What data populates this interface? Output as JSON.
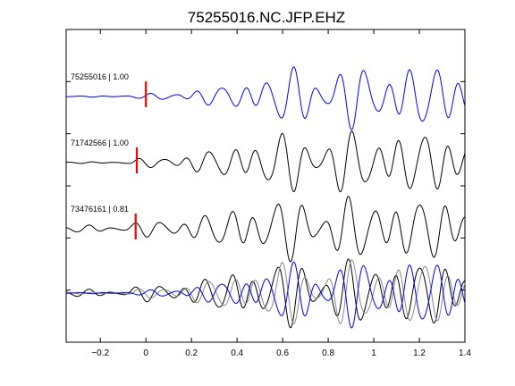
{
  "chart_data": {
    "type": "line",
    "title": "75255016.NC.JFP.EHZ",
    "xlabel": "",
    "ylabel": "",
    "xlim": [
      -0.35,
      1.4
    ],
    "x_ticks": [
      -0.2,
      0,
      0.2,
      0.4,
      0.6,
      0.8,
      1,
      1.2,
      1.4
    ],
    "x_tick_labels": [
      "−0.2",
      "0",
      "0.2",
      "0.4",
      "0.6",
      "0.8",
      "1",
      "1.2",
      "1.4"
    ],
    "y_tick_count": 7,
    "grid": false,
    "legend": "none",
    "pick_time": 0,
    "traces": [
      {
        "label": "75255016 | 1.00",
        "event_id": "75255016",
        "correlation": 1.0,
        "color": "#0000ff",
        "pick_offset": 0.0,
        "envelope": [
          [
            -0.35,
            0.01
          ],
          [
            -0.12,
            0.03
          ],
          [
            0.0,
            0.08
          ],
          [
            0.2,
            0.22
          ],
          [
            0.4,
            0.42
          ],
          [
            0.5,
            0.65
          ],
          [
            0.6,
            0.9
          ],
          [
            0.8,
            1.0
          ],
          [
            1.4,
            1.0
          ]
        ]
      },
      {
        "label": "71742566 | 1.00",
        "event_id": "71742566",
        "correlation": 1.0,
        "color": "#000000",
        "pick_offset": -0.04,
        "envelope": [
          [
            -0.35,
            0.02
          ],
          [
            -0.04,
            0.04
          ],
          [
            0.0,
            0.12
          ],
          [
            0.2,
            0.28
          ],
          [
            0.4,
            0.5
          ],
          [
            0.5,
            0.75
          ],
          [
            0.6,
            0.95
          ],
          [
            0.8,
            1.0
          ],
          [
            1.4,
            1.0
          ]
        ]
      },
      {
        "label": "73476161 | 0.81",
        "event_id": "73476161",
        "correlation": 0.81,
        "color": "#000000",
        "pick_offset": -0.045,
        "envelope": [
          [
            -0.35,
            0.1
          ],
          [
            -0.05,
            0.14
          ],
          [
            0.0,
            0.22
          ],
          [
            0.2,
            0.35
          ],
          [
            0.4,
            0.6
          ],
          [
            0.5,
            0.85
          ],
          [
            0.6,
            1.0
          ],
          [
            0.8,
            1.0
          ],
          [
            1.4,
            1.0
          ]
        ]
      }
    ],
    "overlay": {
      "colors": [
        "#000000",
        "#888888",
        "#0000ff"
      ]
    }
  },
  "colors": {
    "pick_marker": "#ff0000",
    "master": "#0000ff",
    "other": "#000000",
    "overlay_gray": "#888888"
  }
}
